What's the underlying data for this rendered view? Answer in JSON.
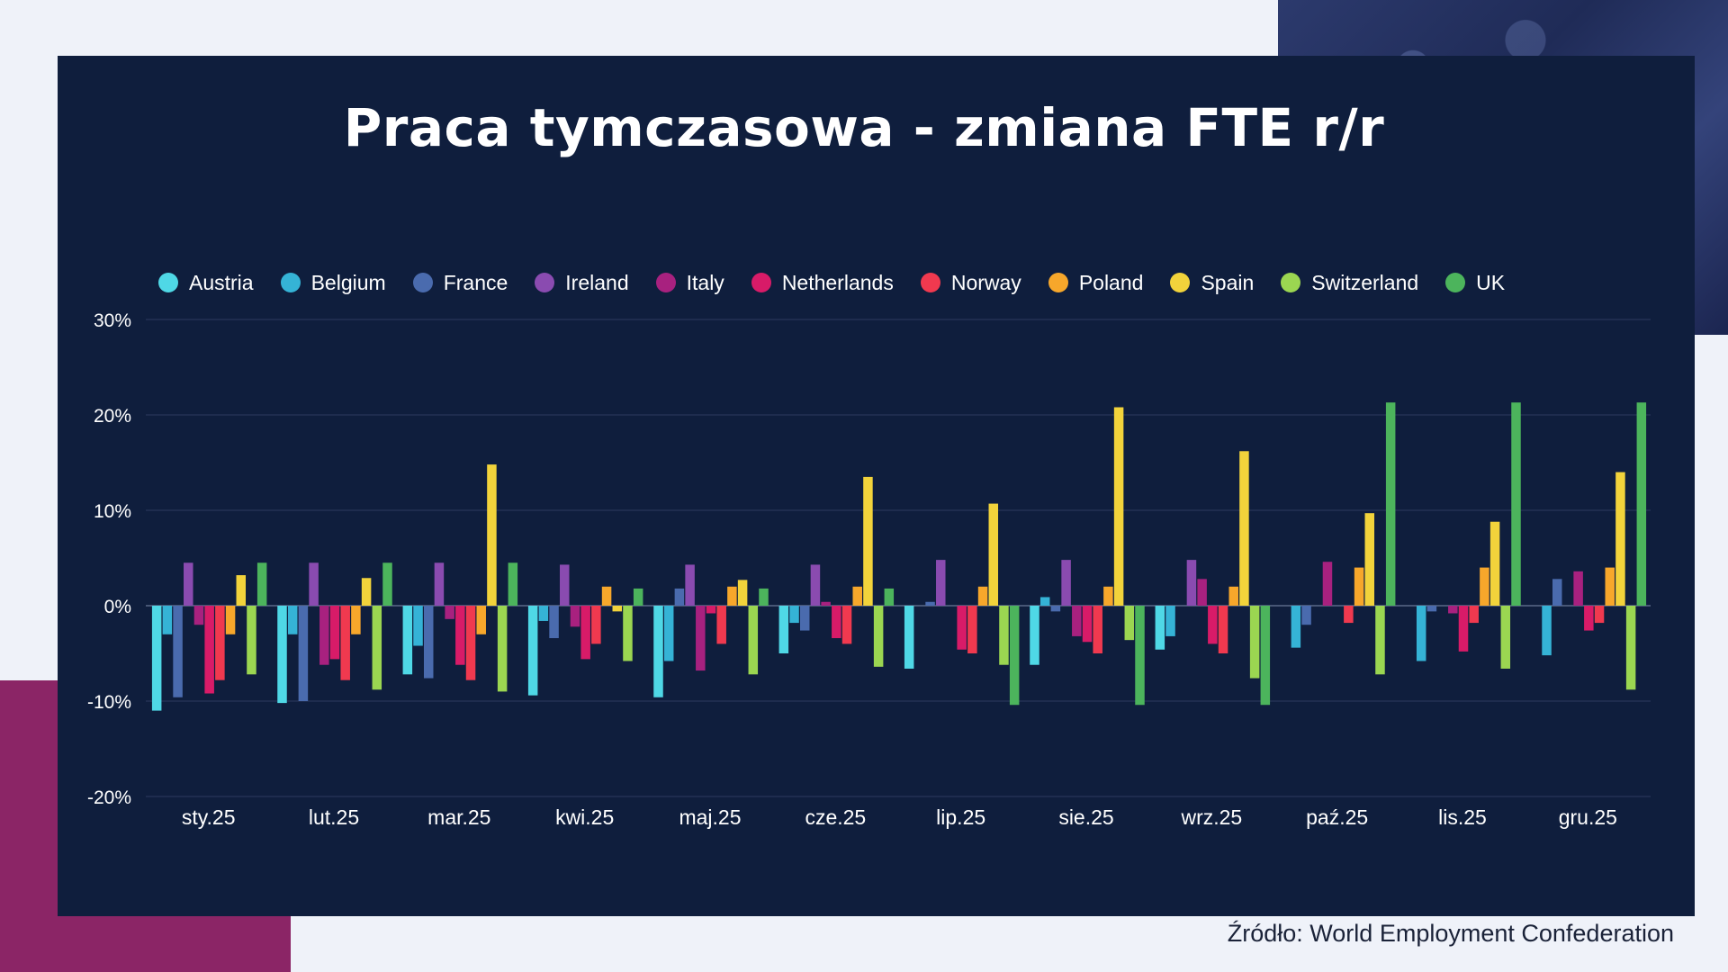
{
  "chart_data": {
    "type": "bar",
    "title": "Praca tymczasowa - zmiana FTE r/r",
    "categories": [
      "sty.25",
      "lut.25",
      "mar.25",
      "kwi.25",
      "maj.25",
      "cze.25",
      "lip.25",
      "sie.25",
      "wrz.25",
      "paź.25",
      "lis.25",
      "gru.25"
    ],
    "yticks": [
      "30%",
      "20%",
      "10%",
      "0%",
      "-10%",
      "-20%"
    ],
    "ylim": [
      -20,
      30
    ],
    "legend_position": "top",
    "grid": true,
    "series": [
      {
        "name": "Austria",
        "color": "#4fd8e6",
        "values": [
          -11.0,
          -10.2,
          -7.2,
          -9.4,
          -9.6,
          -5.0,
          -6.6,
          -6.2,
          -4.6,
          null,
          null,
          null
        ]
      },
      {
        "name": "Belgium",
        "color": "#35b3d6",
        "values": [
          -3.0,
          -3.0,
          -4.2,
          -1.6,
          -5.8,
          -1.8,
          null,
          0.9,
          -3.2,
          -4.4,
          -5.8,
          -5.2
        ]
      },
      {
        "name": "France",
        "color": "#4a6bae",
        "values": [
          -9.6,
          -10.0,
          -7.6,
          -3.4,
          1.8,
          -2.6,
          0.4,
          -0.6,
          null,
          -2.0,
          -0.6,
          2.8
        ]
      },
      {
        "name": "Ireland",
        "color": "#8a4bb0",
        "values": [
          4.5,
          4.5,
          4.5,
          4.3,
          4.3,
          4.3,
          4.8,
          4.8,
          4.8,
          null,
          null,
          null
        ]
      },
      {
        "name": "Italy",
        "color": "#a8217f",
        "values": [
          -2.0,
          -6.2,
          -1.4,
          -2.2,
          -6.8,
          0.4,
          null,
          -3.2,
          2.8,
          4.6,
          -0.8,
          3.6
        ]
      },
      {
        "name": "Netherlands",
        "color": "#d81b68",
        "values": [
          -9.2,
          -5.6,
          -6.2,
          -5.6,
          -0.8,
          -3.4,
          -4.6,
          -3.8,
          -4.0,
          null,
          -4.8,
          -2.6
        ]
      },
      {
        "name": "Norway",
        "color": "#f0394f",
        "values": [
          -7.8,
          -7.8,
          -7.8,
          -4.0,
          -4.0,
          -4.0,
          -5.0,
          -5.0,
          -5.0,
          -1.8,
          -1.8,
          -1.8
        ]
      },
      {
        "name": "Poland",
        "color": "#f7a72b",
        "values": [
          -3.0,
          -3.0,
          -3.0,
          2.0,
          2.0,
          2.0,
          2.0,
          2.0,
          2.0,
          4.0,
          4.0,
          4.0
        ]
      },
      {
        "name": "Spain",
        "color": "#f2d33b",
        "values": [
          3.2,
          2.9,
          14.8,
          -0.6,
          2.7,
          13.5,
          10.7,
          20.8,
          16.2,
          9.7,
          8.8,
          14.0
        ]
      },
      {
        "name": "Switzerland",
        "color": "#9bd651",
        "values": [
          -7.2,
          -8.8,
          -9.0,
          -5.8,
          -7.2,
          -6.4,
          -6.2,
          -3.6,
          -7.6,
          -7.2,
          -6.6,
          -8.8
        ]
      },
      {
        "name": "UK",
        "color": "#4cb45c",
        "values": [
          4.5,
          4.5,
          4.5,
          1.8,
          1.8,
          1.8,
          -10.4,
          -10.4,
          -10.4,
          21.3,
          21.3,
          21.3
        ]
      }
    ]
  },
  "source": "Źródło: World Employment Confederation"
}
